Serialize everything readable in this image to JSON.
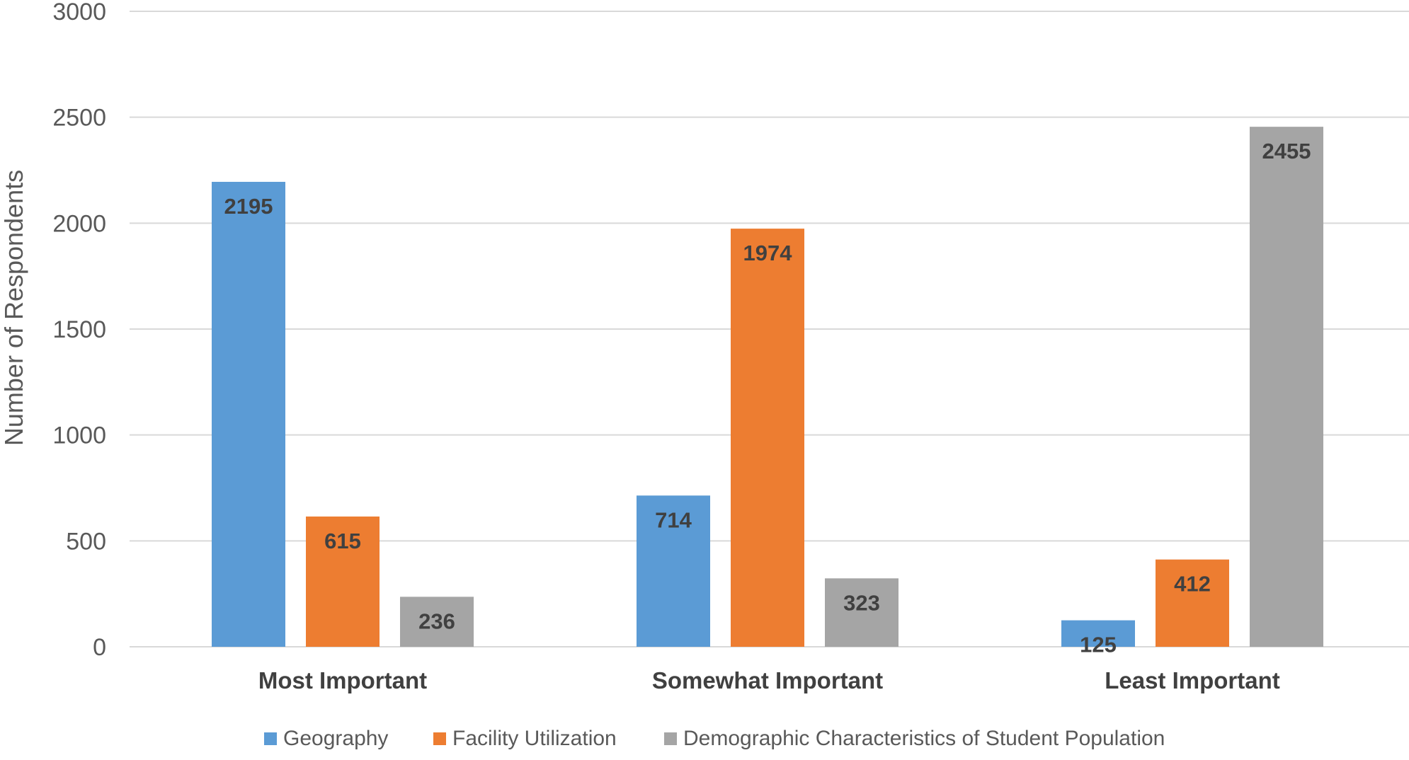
{
  "chart_data": {
    "type": "bar",
    "title": "",
    "xlabel": "",
    "ylabel": "Number of Respondents",
    "ylim": [
      0,
      3000
    ],
    "yticks": [
      0,
      500,
      1000,
      1500,
      2000,
      2500,
      3000
    ],
    "categories": [
      "Most Important",
      "Somewhat Important",
      "Least Important"
    ],
    "series": [
      {
        "name": "Geography",
        "color": "#5b9bd5",
        "values": [
          2195,
          714,
          125
        ]
      },
      {
        "name": "Facility Utilization",
        "color": "#ed7d31",
        "values": [
          615,
          1974,
          412
        ]
      },
      {
        "name": "Demographic Characteristics of Student Population",
        "color": "#a5a5a5",
        "values": [
          236,
          323,
          2455
        ]
      }
    ],
    "data_labels": true,
    "grid": true,
    "legend_position": "bottom"
  }
}
